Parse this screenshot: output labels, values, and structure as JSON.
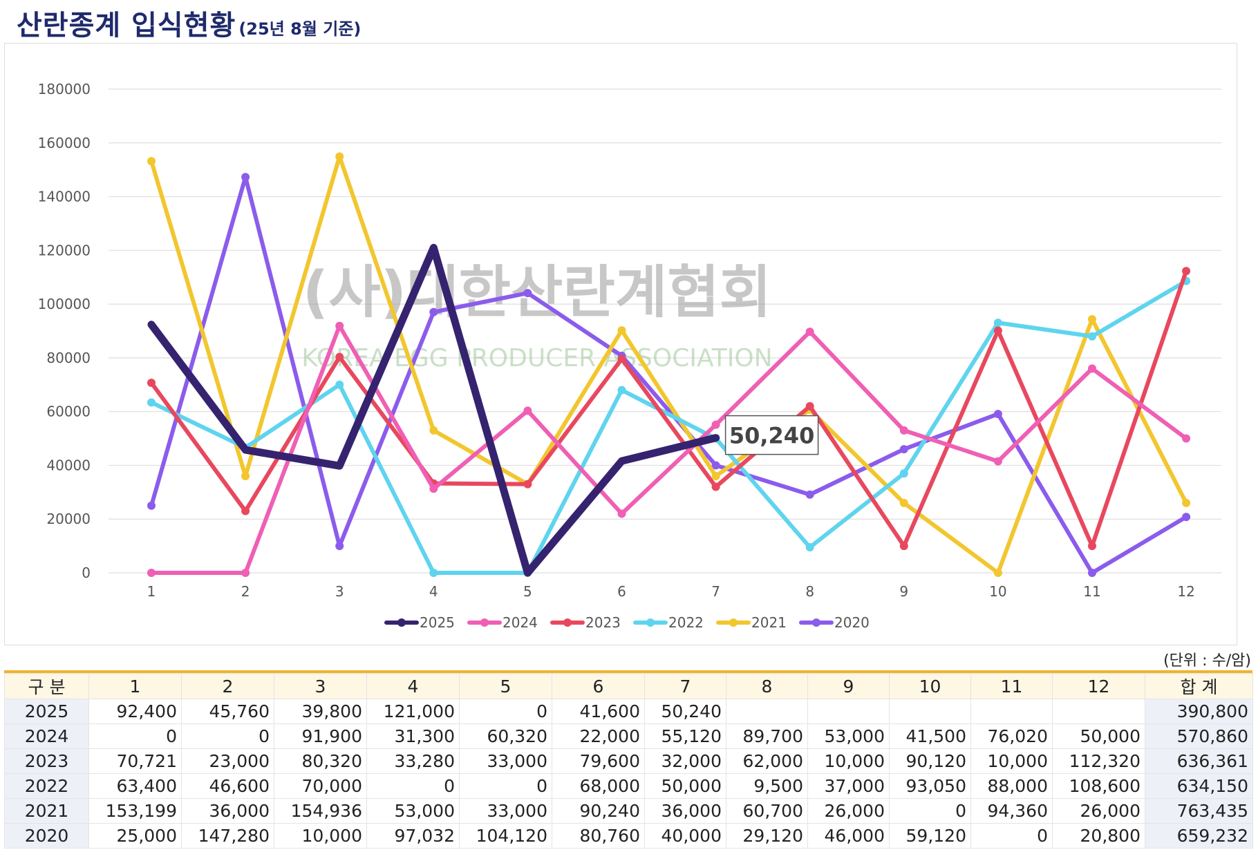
{
  "title": {
    "main": "산란종계 입식현황",
    "sub": "(25년 8월 기준)"
  },
  "watermark": {
    "korean": "(사)대한산란계협회",
    "english": "KOREA EGG PRODUCER ASSOCIATION"
  },
  "chart_data": {
    "type": "line",
    "categories": [
      "1",
      "2",
      "3",
      "4",
      "5",
      "6",
      "7",
      "8",
      "9",
      "10",
      "11",
      "12"
    ],
    "ylim": [
      0,
      180000
    ],
    "yticks": [
      "0",
      "20000",
      "40000",
      "60000",
      "80000",
      "100000",
      "120000",
      "140000",
      "160000",
      "180000"
    ],
    "grid": true,
    "legend": "bottom",
    "callout": {
      "series": "2025",
      "index": 6,
      "label": "50,240"
    },
    "series": [
      {
        "name": "2025",
        "color": "#35236f",
        "width": 11,
        "values": [
          92400,
          45760,
          39800,
          121000,
          0,
          41600,
          50240,
          null,
          null,
          null,
          null,
          null
        ]
      },
      {
        "name": "2024",
        "color": "#ef5fb4",
        "width": 6,
        "values": [
          0,
          0,
          91900,
          31300,
          60320,
          22000,
          55120,
          89700,
          53000,
          41500,
          76020,
          50000
        ]
      },
      {
        "name": "2023",
        "color": "#e8485e",
        "width": 6,
        "values": [
          70721,
          23000,
          80320,
          33280,
          33000,
          79600,
          32000,
          62000,
          10000,
          90120,
          10000,
          112320
        ]
      },
      {
        "name": "2022",
        "color": "#5fd4ee",
        "width": 6,
        "values": [
          63400,
          46600,
          70000,
          0,
          0,
          68000,
          50000,
          9500,
          37000,
          93050,
          88000,
          108600
        ]
      },
      {
        "name": "2021",
        "color": "#f2c62e",
        "width": 6,
        "values": [
          153199,
          36000,
          154936,
          53000,
          33000,
          90240,
          36000,
          60700,
          26000,
          0,
          94360,
          26000
        ]
      },
      {
        "name": "2020",
        "color": "#8b5cec",
        "width": 6,
        "values": [
          25000,
          147280,
          10000,
          97032,
          104120,
          80760,
          40000,
          29120,
          46000,
          59120,
          0,
          20800
        ]
      }
    ]
  },
  "unit_note": "(단위 : 수/암)",
  "table": {
    "headers": [
      "구 분",
      "1",
      "2",
      "3",
      "4",
      "5",
      "6",
      "7",
      "8",
      "9",
      "10",
      "11",
      "12",
      "합 계"
    ],
    "rows": [
      {
        "year": "2025",
        "cells": [
          "92,400",
          "45,760",
          "39,800",
          "121,000",
          "0",
          "41,600",
          "50,240",
          "",
          "",
          "",
          "",
          ""
        ],
        "total": "390,800"
      },
      {
        "year": "2024",
        "cells": [
          "0",
          "0",
          "91,900",
          "31,300",
          "60,320",
          "22,000",
          "55,120",
          "89,700",
          "53,000",
          "41,500",
          "76,020",
          "50,000"
        ],
        "total": "570,860"
      },
      {
        "year": "2023",
        "cells": [
          "70,721",
          "23,000",
          "80,320",
          "33,280",
          "33,000",
          "79,600",
          "32,000",
          "62,000",
          "10,000",
          "90,120",
          "10,000",
          "112,320"
        ],
        "total": "636,361"
      },
      {
        "year": "2022",
        "cells": [
          "63,400",
          "46,600",
          "70,000",
          "0",
          "0",
          "68,000",
          "50,000",
          "9,500",
          "37,000",
          "93,050",
          "88,000",
          "108,600"
        ],
        "total": "634,150"
      },
      {
        "year": "2021",
        "cells": [
          "153,199",
          "36,000",
          "154,936",
          "53,000",
          "33,000",
          "90,240",
          "36,000",
          "60,700",
          "26,000",
          "0",
          "94,360",
          "26,000"
        ],
        "total": "763,435"
      },
      {
        "year": "2020",
        "cells": [
          "25,000",
          "147,280",
          "10,000",
          "97,032",
          "104,120",
          "80,760",
          "40,000",
          "29,120",
          "46,000",
          "59,120",
          "0",
          "20,800"
        ],
        "total": "659,232"
      }
    ]
  }
}
